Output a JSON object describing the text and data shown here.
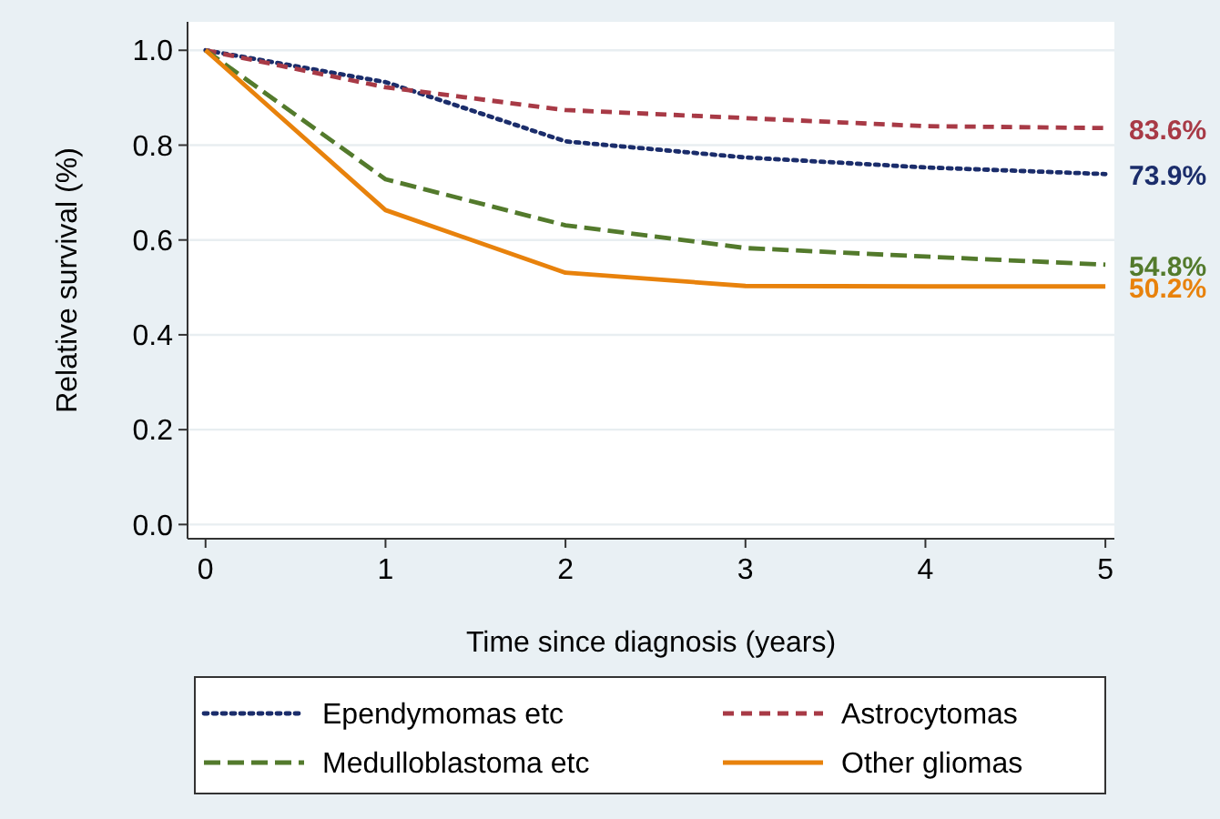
{
  "chart_data": {
    "type": "line",
    "xlabel": "Time since diagnosis (years)",
    "ylabel": "Relative survival (%)",
    "x": [
      0,
      1,
      2,
      3,
      4,
      5
    ],
    "xlim": [
      -0.1,
      5.05
    ],
    "xticks": [
      0,
      1,
      2,
      3,
      4,
      5
    ],
    "ylim": [
      -0.03,
      1.06
    ],
    "yticks": [
      {
        "value": 0,
        "label": "0.0"
      },
      {
        "value": 0.2,
        "label": "0.2"
      },
      {
        "value": 0.4,
        "label": "0.4"
      },
      {
        "value": 0.6,
        "label": "0.6"
      },
      {
        "value": 0.8,
        "label": "0.8"
      },
      {
        "value": 1,
        "label": "1.0"
      }
    ],
    "grid": "y",
    "legend": "bottom",
    "marker": "none",
    "series": [
      {
        "name": "Ependymomas etc",
        "color": "#1b2d6b",
        "line_style": "dotted",
        "values": [
          1,
          0.933,
          0.808,
          0.774,
          0.753,
          0.739
        ],
        "value_labels": [
          null,
          null,
          null,
          null,
          null,
          "73.9%"
        ]
      },
      {
        "name": "Astrocytomas",
        "color": "#a83a46",
        "line_style": "dashed",
        "values": [
          1,
          0.922,
          0.874,
          0.857,
          0.84,
          0.836
        ],
        "value_labels": [
          null,
          null,
          null,
          null,
          null,
          "83.6%"
        ]
      },
      {
        "name": "Medulloblastoma etc",
        "color": "#537a2c",
        "line_style": "dashed",
        "values": [
          1,
          0.728,
          0.631,
          0.583,
          0.565,
          0.548
        ],
        "value_labels": [
          null,
          null,
          null,
          null,
          null,
          "54.8%"
        ]
      },
      {
        "name": "Other gliomas",
        "color": "#e8820c",
        "line_style": "solid",
        "values": [
          1,
          0.663,
          0.531,
          0.503,
          0.502,
          0.502
        ],
        "value_labels": [
          null,
          null,
          null,
          null,
          null,
          "50.2%"
        ]
      }
    ]
  }
}
